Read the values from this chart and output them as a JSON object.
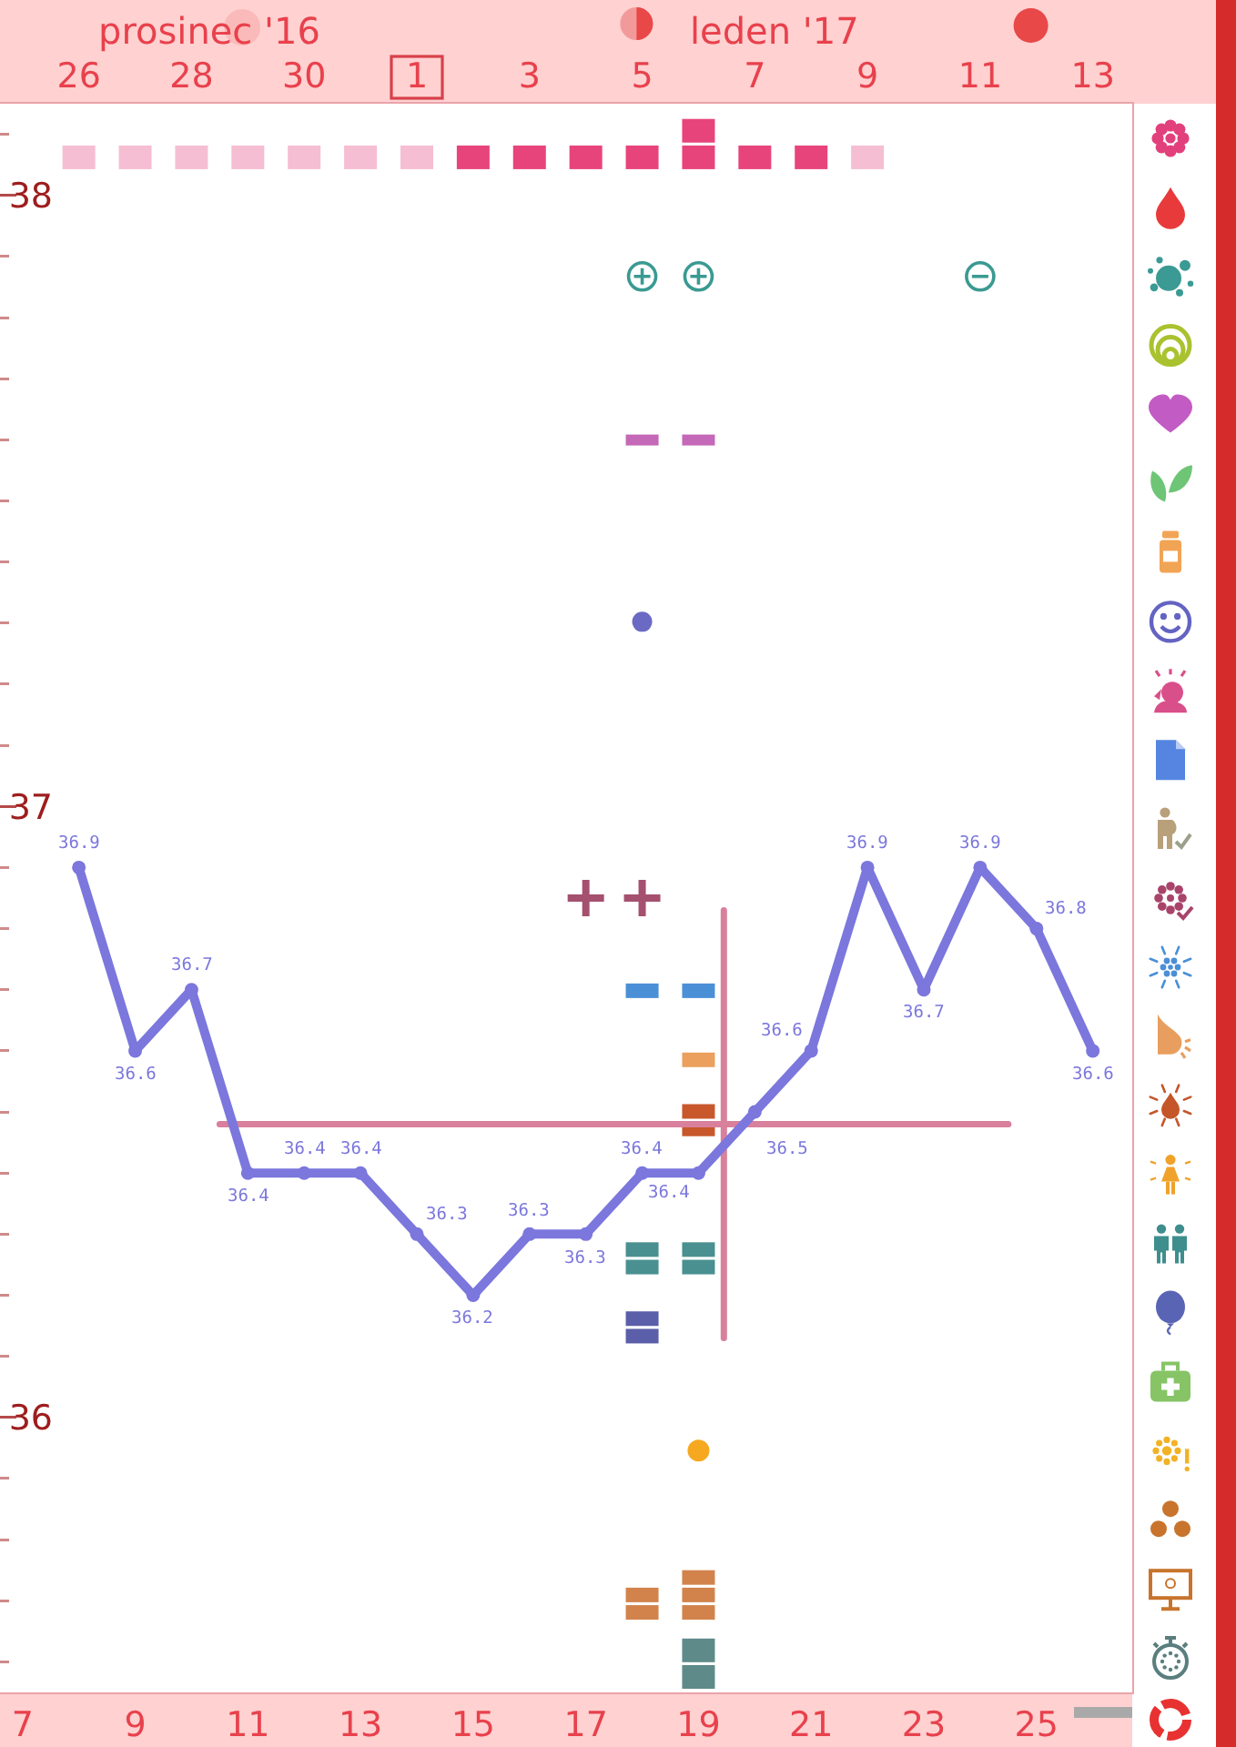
{
  "chart_data": {
    "type": "line",
    "x": [
      8,
      9,
      10,
      11,
      12,
      13,
      14,
      15,
      16,
      17,
      18,
      19,
      20,
      21,
      22,
      23,
      24,
      25,
      26
    ],
    "series": [
      {
        "type": "line",
        "x": [
          10.5,
          24.5
        ],
        "values": [
          36.48,
          36.48
        ],
        "color": "#d9809c",
        "marker": "none"
      },
      {
        "type": "line",
        "x": [
          19.45,
          19.45
        ],
        "values": [
          36.83,
          36.13
        ],
        "color": "#d9809c",
        "marker": "none"
      },
      {
        "color": "#7b77dd",
        "values": [
          36.9,
          36.6,
          36.7,
          36.4,
          36.4,
          36.4,
          36.3,
          36.2,
          36.3,
          36.3,
          36.4,
          36.4,
          36.5,
          36.6,
          36.9,
          36.7,
          36.9,
          36.8,
          36.6
        ],
        "value_labels": [
          "36.9",
          "36.6",
          "36.7",
          "36.4",
          "36.4",
          "36.4",
          "36.3",
          "36.2",
          "36.3",
          "36.3",
          "36.4",
          "36.4",
          "36.5",
          "36.6",
          "36.9",
          "36.7",
          "36.9",
          "36.8",
          "36.6"
        ]
      }
    ],
    "marker": "circle",
    "xlim": [
      6.6,
      26.7
    ],
    "xticks": [
      7,
      9,
      11,
      13,
      15,
      17,
      19,
      21,
      23,
      25
    ],
    "x2lim": [
      "2016-12-24T14:24",
      "2017-01-13T16:48"
    ],
    "x2ticks": [
      {
        "value": "2016-12-26",
        "label": "26"
      },
      {
        "value": "2016-12-28",
        "label": "28"
      },
      {
        "value": "2016-12-30",
        "label": "30"
      },
      {
        "value": "2017-01-01",
        "label": "1"
      },
      {
        "value": "2017-01-03",
        "label": "3"
      },
      {
        "value": "2017-01-05",
        "label": "5"
      },
      {
        "value": "2017-01-07",
        "label": "7"
      },
      {
        "value": "2017-01-09",
        "label": "9"
      },
      {
        "value": "2017-01-11",
        "label": "11"
      },
      {
        "value": "2017-01-13",
        "label": "13"
      }
    ],
    "ylim": [
      35.55,
      38.15
    ],
    "yticks": [
      {
        "value": 35.6,
        "label": null
      },
      {
        "value": 35.7,
        "label": null
      },
      {
        "value": 35.8,
        "label": null
      },
      {
        "value": 35.9,
        "label": null
      },
      36,
      {
        "value": 36.1,
        "label": null
      },
      {
        "value": 36.2,
        "label": null
      },
      {
        "value": 36.3,
        "label": null
      },
      {
        "value": 36.4,
        "label": null
      },
      {
        "value": 36.5,
        "label": null
      },
      {
        "value": 36.6,
        "label": null
      },
      {
        "value": 36.7,
        "label": null
      },
      {
        "value": 36.8,
        "label": null
      },
      {
        "value": 36.9,
        "label": null
      },
      37,
      {
        "value": 37.1,
        "label": null
      },
      {
        "value": 37.2,
        "label": null
      },
      {
        "value": 37.3,
        "label": null
      },
      {
        "value": 37.4,
        "label": null
      },
      {
        "value": 37.5,
        "label": null
      },
      {
        "value": 37.6,
        "label": null
      },
      {
        "value": 37.7,
        "label": null
      },
      {
        "value": 37.8,
        "label": null
      },
      {
        "value": 37.9,
        "label": null
      },
      38,
      {
        "value": 38.1,
        "label": null
      }
    ],
    "annotations": [
      "prosinec '16",
      "leden '17"
    ]
  }
}
